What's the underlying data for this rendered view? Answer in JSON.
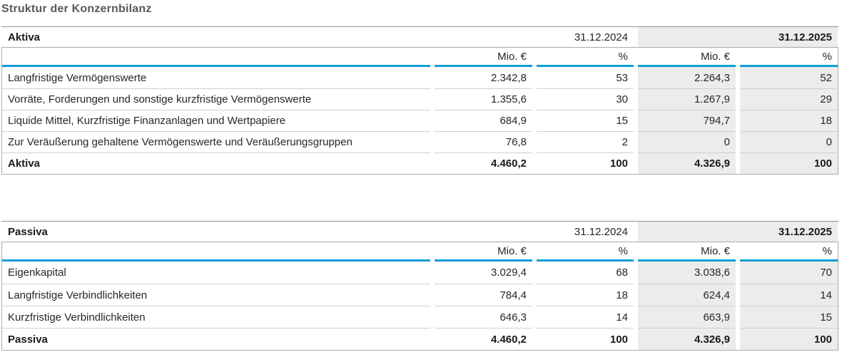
{
  "page": {
    "title": "Struktur der Konzernbilanz"
  },
  "colors": {
    "accent_blue": "#0f9ed8",
    "column_shading": "#ececec"
  },
  "units": {
    "mio": "Mio. €",
    "pct": "%"
  },
  "tables": [
    {
      "name": "Aktiva",
      "date_prev": "31.12.2024",
      "date_curr": "31.12.2025",
      "rows": [
        {
          "label": "Langfristige Vermögenswerte",
          "m_prev": "2.342,8",
          "p_prev": "53",
          "m_curr": "2.264,3",
          "p_curr": "52"
        },
        {
          "label": "Vorräte, Forderungen und sonstige kurzfristige Vermögenswerte",
          "m_prev": "1.355,6",
          "p_prev": "30",
          "m_curr": "1.267,9",
          "p_curr": "29"
        },
        {
          "label": "Liquide Mittel, Kurzfristige Finanzanlagen und Wertpapiere",
          "m_prev": "684,9",
          "p_prev": "15",
          "m_curr": "794,7",
          "p_curr": "18"
        },
        {
          "label": "Zur Veräußerung gehaltene Vermögenswerte und Veräußerungsgruppen",
          "m_prev": "76,8",
          "p_prev": "2",
          "m_curr": "0",
          "p_curr": "0"
        }
      ],
      "total": {
        "label": "Aktiva",
        "m_prev": "4.460,2",
        "p_prev": "100",
        "m_curr": "4.326,9",
        "p_curr": "100"
      }
    },
    {
      "name": "Passiva",
      "date_prev": "31.12.2024",
      "date_curr": "31.12.2025",
      "rows": [
        {
          "label": "Eigenkapital",
          "m_prev": "3.029,4",
          "p_prev": "68",
          "m_curr": "3.038,6",
          "p_curr": "70"
        },
        {
          "label": "Langfristige Verbindlichkeiten",
          "m_prev": "784,4",
          "p_prev": "18",
          "m_curr": "624,4",
          "p_curr": "14"
        },
        {
          "label": "Kurzfristige Verbindlichkeiten",
          "m_prev": "646,3",
          "p_prev": "14",
          "m_curr": "663,9",
          "p_curr": "15"
        }
      ],
      "total": {
        "label": "Passiva",
        "m_prev": "4.460,2",
        "p_prev": "100",
        "m_curr": "4.326,9",
        "p_curr": "100"
      }
    }
  ]
}
